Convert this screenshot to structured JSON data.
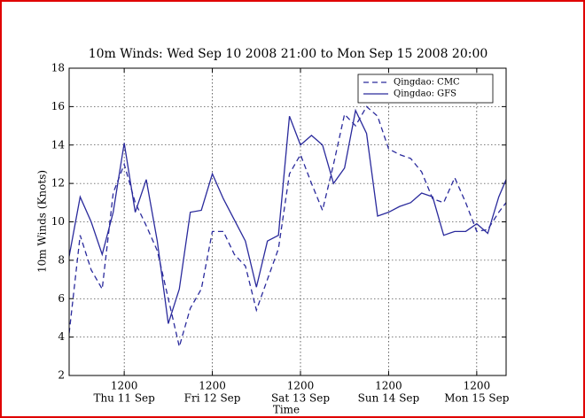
{
  "chart_data": {
    "type": "line",
    "title": "10m Winds: Wed Sep 10 2008 21:00 to Mon Sep 15 2008 20:00",
    "xlabel": "Time",
    "ylabel": "10m Winds (Knots)",
    "x": [
      "2008-09-10 21:00",
      "2008-09-11 00:00",
      "2008-09-11 03:00",
      "2008-09-11 06:00",
      "2008-09-11 09:00",
      "2008-09-11 12:00",
      "2008-09-11 15:00",
      "2008-09-11 18:00",
      "2008-09-11 21:00",
      "2008-09-12 00:00",
      "2008-09-12 03:00",
      "2008-09-12 06:00",
      "2008-09-12 09:00",
      "2008-09-12 12:00",
      "2008-09-12 15:00",
      "2008-09-12 18:00",
      "2008-09-12 21:00",
      "2008-09-13 00:00",
      "2008-09-13 03:00",
      "2008-09-13 06:00",
      "2008-09-13 09:00",
      "2008-09-13 12:00",
      "2008-09-13 15:00",
      "2008-09-13 18:00",
      "2008-09-13 21:00",
      "2008-09-14 00:00",
      "2008-09-14 03:00",
      "2008-09-14 06:00",
      "2008-09-14 09:00",
      "2008-09-14 12:00",
      "2008-09-14 15:00",
      "2008-09-14 18:00",
      "2008-09-14 21:00",
      "2008-09-15 00:00",
      "2008-09-15 03:00",
      "2008-09-15 06:00",
      "2008-09-15 09:00",
      "2008-09-15 12:00",
      "2008-09-15 15:00",
      "2008-09-15 18:00",
      "2008-09-15 20:00"
    ],
    "series": [
      {
        "name": "Qingdao: CMC",
        "color": "#2a2a9c",
        "style": "dashed",
        "values": [
          4.2,
          9.3,
          7.5,
          6.5,
          11.5,
          13.0,
          11.0,
          9.8,
          8.5,
          6.0,
          3.5,
          5.5,
          6.5,
          9.5,
          9.5,
          8.3,
          7.7,
          5.4,
          7.0,
          8.6,
          12.5,
          13.5,
          12.0,
          10.6,
          13.0,
          15.6,
          15.0,
          16.0,
          15.5,
          13.8,
          13.5,
          13.3,
          12.6,
          11.2,
          11.0,
          12.3,
          11.0,
          9.5,
          9.6,
          10.5,
          11.0
        ]
      },
      {
        "name": "Qingdao: GFS",
        "color": "#2a2a9c",
        "style": "solid",
        "values": [
          8.2,
          11.3,
          10.0,
          8.3,
          10.5,
          14.1,
          10.5,
          12.2,
          9.0,
          4.7,
          6.5,
          10.5,
          10.6,
          12.5,
          11.2,
          10.1,
          9.0,
          6.6,
          9.0,
          9.3,
          15.5,
          14.0,
          14.5,
          14.0,
          12.0,
          12.8,
          15.8,
          14.6,
          10.3,
          10.5,
          10.8,
          11.0,
          11.5,
          11.3,
          9.3,
          9.5,
          9.5,
          9.9,
          9.4,
          11.3,
          12.2
        ]
      }
    ],
    "xlim": [
      "2008-09-10 21:00",
      "2008-09-15 20:00"
    ],
    "xticks": [
      {
        "value": "2008-09-11 12:00",
        "label": "1200"
      },
      {
        "value": "2008-09-12 12:00",
        "label": "1200"
      },
      {
        "value": "2008-09-13 12:00",
        "label": "1200"
      },
      {
        "value": "2008-09-14 12:00",
        "label": "1200"
      },
      {
        "value": "2008-09-15 12:00",
        "label": "1200"
      }
    ],
    "xtick_days": [
      "Thu 11 Sep",
      "Fri 12 Sep",
      "Sat 13 Sep",
      "Sun 14 Sep",
      "Mon 15 Sep"
    ],
    "ylim": [
      2,
      18
    ],
    "yticks": [
      2,
      4,
      6,
      8,
      10,
      12,
      14,
      16,
      18
    ],
    "grid": true,
    "legend": "upper right"
  }
}
